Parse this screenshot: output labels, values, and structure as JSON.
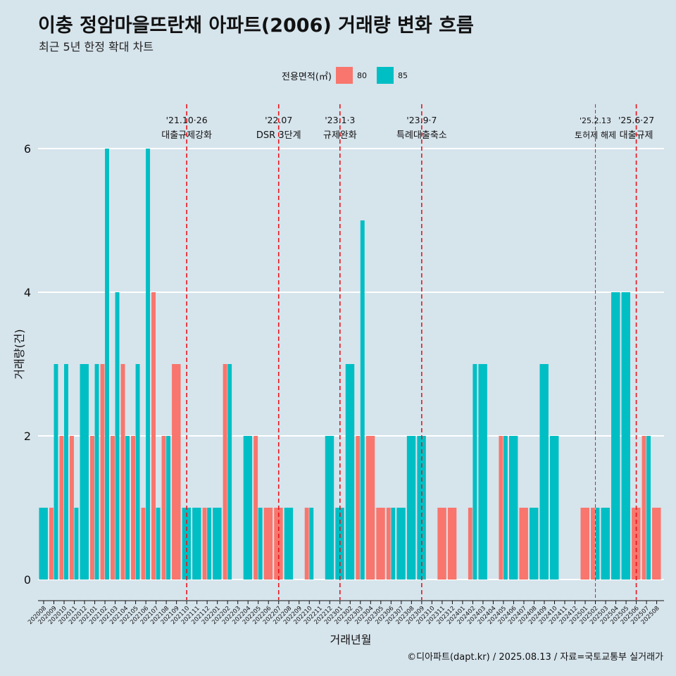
{
  "title": "이충 정암마을뜨란채 아파트(2006) 거래량 변화 흐름",
  "subtitle": "최근 5년 한정 확대 차트",
  "caption": "©디아파트(dapt.kr) / 2025.08.13 / 자료=국토교통부 실거래가",
  "colors": {
    "s80": "#f8766d",
    "s85": "#00bfc4",
    "refline": "#e8141b",
    "grid": "#ffffff",
    "text": "#111111"
  },
  "chart_data": {
    "type": "bar",
    "title": "이충 정암마을뜨란채 아파트(2006) 거래량 변화 흐름",
    "xlabel": "거래년월",
    "ylabel": "거래량(건)",
    "ylim": [
      0,
      6.4
    ],
    "yticks": [
      0,
      2,
      4,
      6
    ],
    "legend_title": "전용면적(㎡)",
    "categories": [
      "202008",
      "202009",
      "202010",
      "202011",
      "202012",
      "202101",
      "202102",
      "202103",
      "202104",
      "202105",
      "202106",
      "202107",
      "202108",
      "202109",
      "202110",
      "202111",
      "202112",
      "202201",
      "202202",
      "202203",
      "202204",
      "202205",
      "202206",
      "202207",
      "202208",
      "202209",
      "202210",
      "202211",
      "202212",
      "202301",
      "202302",
      "202303",
      "202304",
      "202305",
      "202306",
      "202307",
      "202308",
      "202309",
      "202310",
      "202311",
      "202312",
      "202401",
      "202402",
      "202403",
      "202404",
      "202405",
      "202406",
      "202407",
      "202408",
      "202409",
      "202410",
      "202411",
      "202412",
      "202501",
      "202502",
      "202503",
      "202504",
      "202505",
      "202506",
      "202507",
      "202508"
    ],
    "series": [
      {
        "name": "80",
        "values": [
          0,
          1,
          2,
          2,
          0,
          2,
          3,
          2,
          3,
          2,
          1,
          4,
          2,
          3,
          0,
          0,
          1,
          0,
          3,
          0,
          0,
          2,
          1,
          1,
          0,
          0,
          1,
          0,
          0,
          0,
          0,
          2,
          2,
          1,
          1,
          0,
          0,
          0,
          0,
          1,
          1,
          0,
          1,
          0,
          0,
          2,
          0,
          1,
          0,
          0,
          0,
          0,
          0,
          1,
          1,
          0,
          0,
          0,
          1,
          2,
          1
        ]
      },
      {
        "name": "85",
        "values": [
          1,
          3,
          3,
          1,
          3,
          3,
          6,
          4,
          2,
          3,
          6,
          1,
          2,
          0,
          1,
          1,
          1,
          1,
          3,
          0,
          2,
          1,
          0,
          0,
          1,
          0,
          1,
          0,
          2,
          1,
          3,
          5,
          0,
          0,
          1,
          1,
          2,
          2,
          0,
          0,
          0,
          0,
          3,
          3,
          0,
          2,
          2,
          0,
          1,
          3,
          2,
          0,
          0,
          0,
          1,
          1,
          4,
          4,
          0,
          2,
          0
        ]
      }
    ],
    "annotations": [
      {
        "category": "202110",
        "date": "'21.10·26",
        "label": "대출규제강화",
        "style": "dashed"
      },
      {
        "category": "202207",
        "date": "'22.07",
        "label": "DSR 3단계",
        "style": "dashed"
      },
      {
        "category": "202301",
        "date": "'23.1·3",
        "label": "규제완화",
        "style": "dashed"
      },
      {
        "category": "202309",
        "date": "'23.9·7",
        "label": "특례대출축소",
        "style": "dashed"
      },
      {
        "category": "202502",
        "date": "'25.2.13",
        "label": "토허제 해제",
        "style": "thin"
      },
      {
        "category": "202506",
        "date": "'25.6·27",
        "label": "대출규제",
        "style": "dashed"
      }
    ]
  }
}
